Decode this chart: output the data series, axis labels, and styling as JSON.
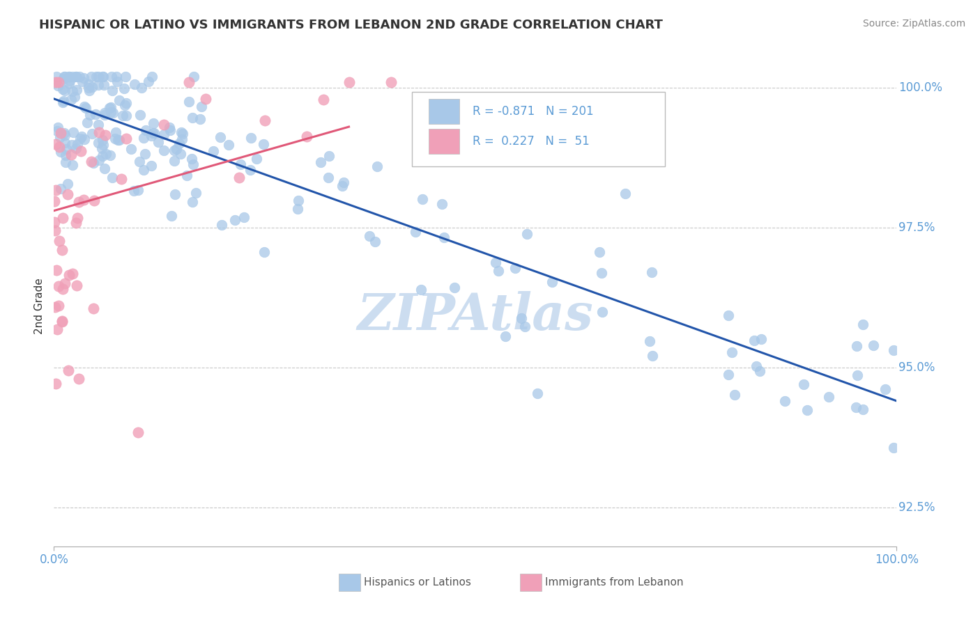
{
  "title": "HISPANIC OR LATINO VS IMMIGRANTS FROM LEBANON 2ND GRADE CORRELATION CHART",
  "source": "Source: ZipAtlas.com",
  "ylabel": "2nd Grade",
  "xlim": [
    0.0,
    1.0
  ],
  "ylim": [
    0.918,
    1.004
  ],
  "yticks": [
    0.925,
    0.95,
    0.975,
    1.0
  ],
  "ytick_labels": [
    "92.5%",
    "95.0%",
    "97.5%",
    "100.0%"
  ],
  "xtick_labels": [
    "0.0%",
    "100.0%"
  ],
  "xticks": [
    0.0,
    1.0
  ],
  "blue_scatter_color": "#a8c8e8",
  "blue_line_color": "#2255aa",
  "pink_scatter_color": "#f0a0b8",
  "pink_line_color": "#e05878",
  "legend_R1": "-0.871",
  "legend_N1": "201",
  "legend_R2": "0.227",
  "legend_N2": "51",
  "label1": "Hispanics or Latinos",
  "label2": "Immigrants from Lebanon",
  "title_color": "#333333",
  "axis_tick_color": "#5b9bd5",
  "ylabel_color": "#333333",
  "watermark_color": "#ccddf0",
  "grid_color": "#c8c8c8",
  "blue_line_x": [
    0.0,
    1.0
  ],
  "blue_line_y": [
    0.998,
    0.944
  ],
  "pink_line_x": [
    0.0,
    0.35
  ],
  "pink_line_y": [
    0.978,
    0.993
  ]
}
